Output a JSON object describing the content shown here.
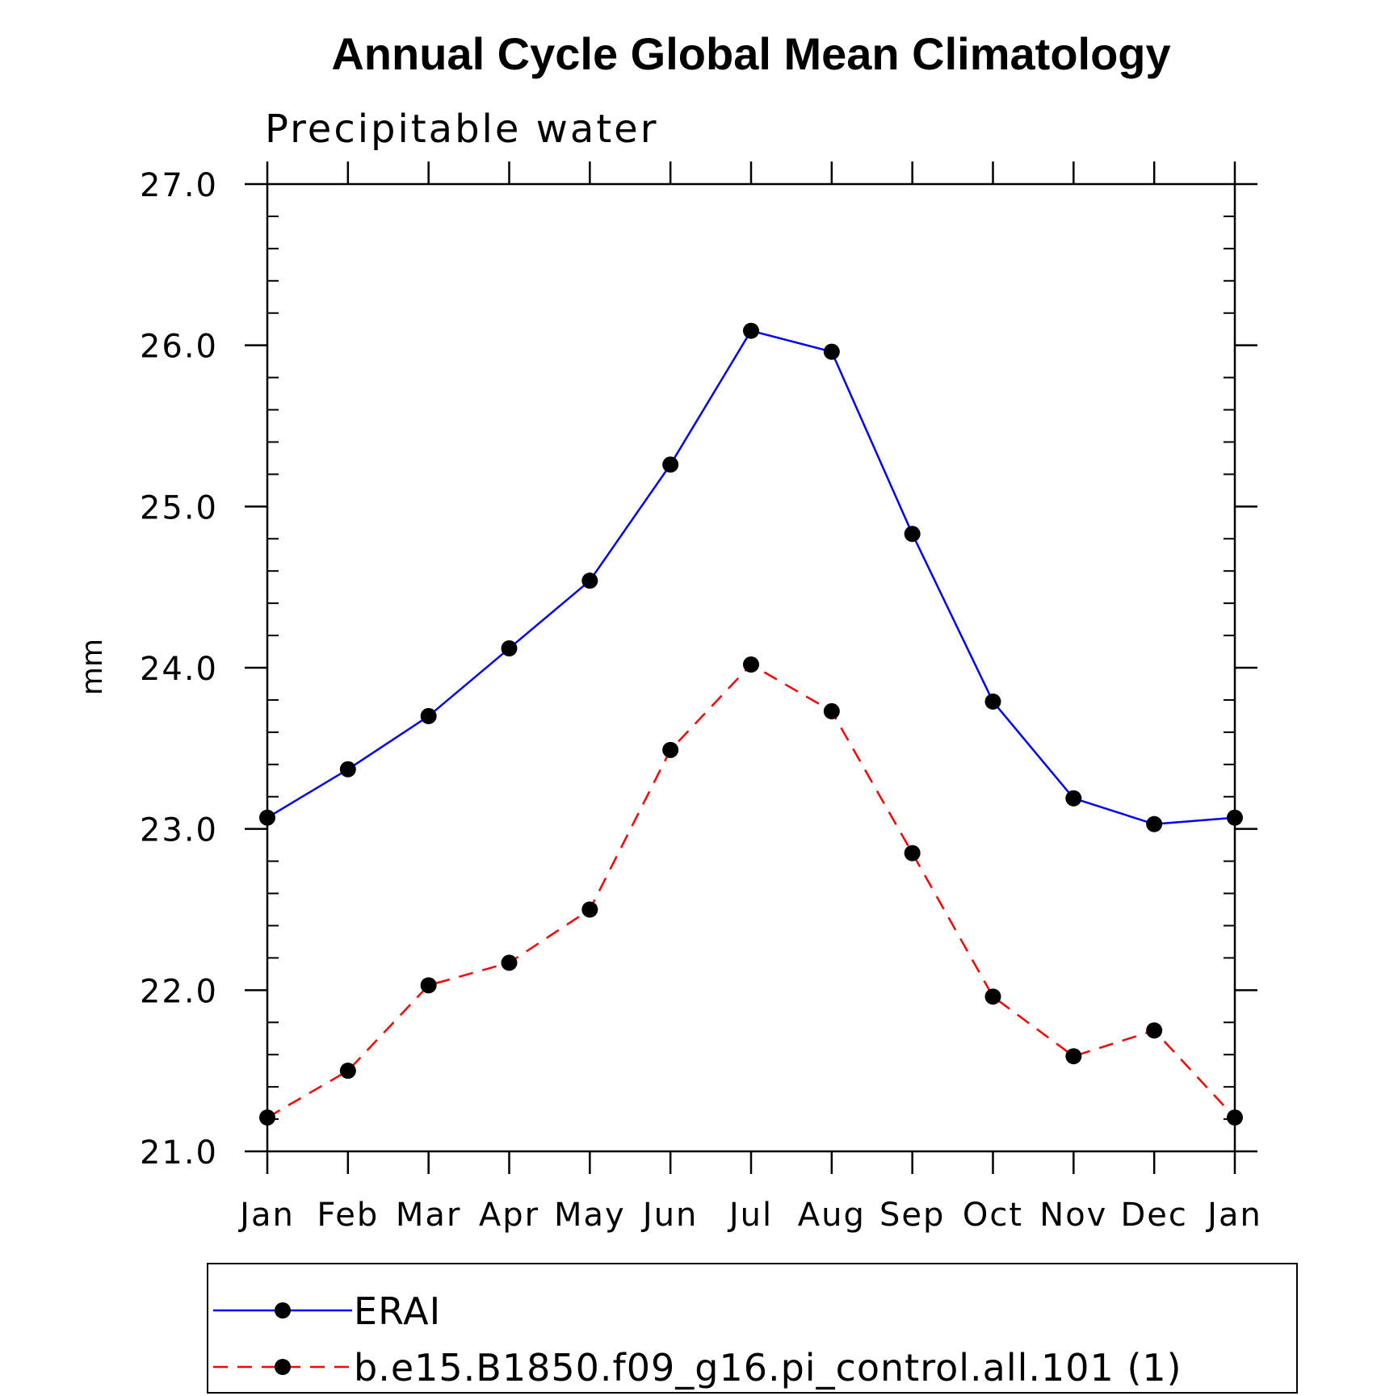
{
  "chart_data": {
    "type": "line",
    "title": "Annual Cycle Global Mean Climatology",
    "subtitle": "Precipitable water",
    "xlabel": "",
    "ylabel": "mm",
    "categories": [
      "Jan",
      "Feb",
      "Mar",
      "Apr",
      "May",
      "Jun",
      "Jul",
      "Aug",
      "Sep",
      "Oct",
      "Nov",
      "Dec",
      "Jan"
    ],
    "ylim": [
      21.0,
      27.0
    ],
    "yticks": [
      "21.0",
      "22.0",
      "23.0",
      "24.0",
      "25.0",
      "26.0",
      "27.0"
    ],
    "grid": false,
    "legend_position": "bottom",
    "series": [
      {
        "name": "ERAI",
        "color": "#0000ff",
        "dash": "solid",
        "marker": "filled-circle",
        "values": [
          23.07,
          23.37,
          23.7,
          24.12,
          24.54,
          25.26,
          26.09,
          25.96,
          24.83,
          23.79,
          23.19,
          23.03,
          23.07
        ]
      },
      {
        "name": "b.e15.B1850.f09_g16.pi_control.all.101 (1)",
        "color": "#ff0000",
        "dash": "dashed",
        "marker": "filled-circle",
        "values": [
          21.21,
          21.5,
          22.03,
          22.17,
          22.5,
          23.49,
          24.02,
          23.73,
          22.85,
          21.96,
          21.59,
          21.75,
          21.21
        ]
      }
    ]
  }
}
